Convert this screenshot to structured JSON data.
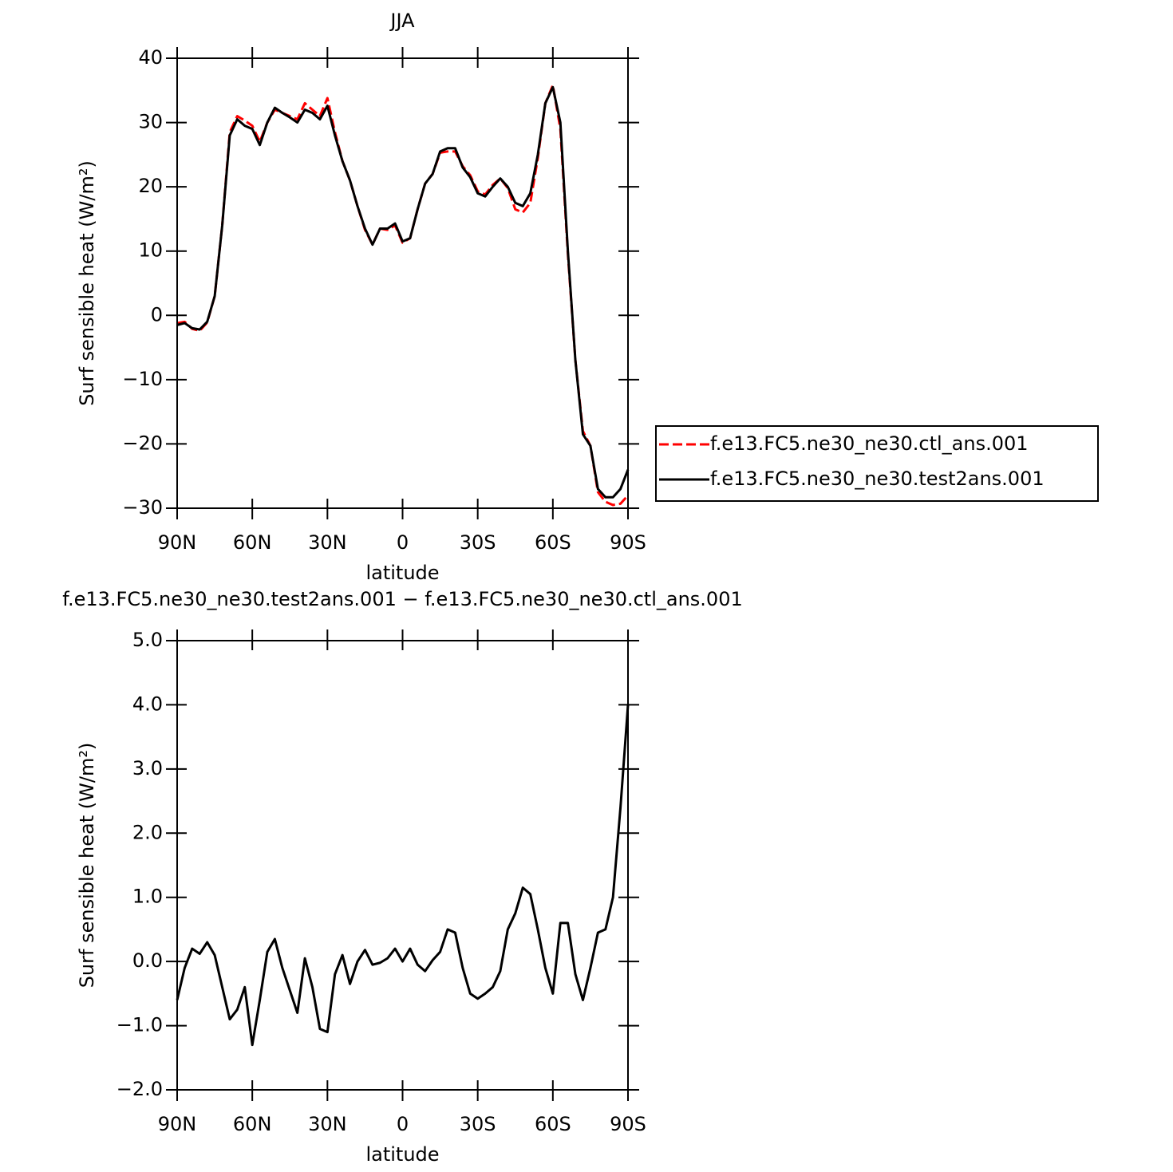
{
  "chart_data": [
    {
      "type": "line",
      "title": "JJA",
      "x_label": "latitude",
      "y_label": "Surf sensible heat (W/m²)",
      "x": [
        90,
        87,
        84,
        81,
        78,
        75,
        72,
        69,
        66,
        63,
        60,
        57,
        54,
        51,
        48,
        45,
        42,
        39,
        36,
        33,
        30,
        27,
        24,
        21,
        18,
        15,
        12,
        9,
        6,
        3,
        0,
        -3,
        -6,
        -9,
        -12,
        -15,
        -18,
        -21,
        -24,
        -27,
        -30,
        -33,
        -36,
        -39,
        -42,
        -45,
        -48,
        -51,
        -54,
        -57,
        -60,
        -63,
        -66,
        -69,
        -72,
        -75,
        -78,
        -81,
        -84,
        -87,
        -90
      ],
      "series": [
        {
          "name": "f.e13.FC5.ne30_ne30.ctl_ans.001",
          "color": "#ff0000",
          "style": "dashed",
          "values": [
            -1.2,
            -1.0,
            -2.1,
            -2.4,
            -1.1,
            3,
            14,
            28.5,
            31,
            30.3,
            29.5,
            27,
            30,
            32,
            31.5,
            31,
            30.5,
            33,
            32,
            31,
            33.8,
            28.5,
            24,
            21,
            17,
            13.3,
            11,
            13.5,
            13.3,
            14,
            11.3,
            12,
            16.5,
            20.5,
            22,
            25.3,
            25.5,
            25.5,
            23.2,
            21.8,
            19.3,
            18.8,
            20.3,
            21.3,
            19.8,
            16.5,
            16,
            17.5,
            24.5,
            33,
            35.8,
            29,
            9.5,
            -7,
            -18,
            -20.3,
            -27.5,
            -29,
            -29.5,
            -29.3,
            -28
          ]
        },
        {
          "name": "f.e13.FC5.ne30_ne30.test2ans.001",
          "color": "#000000",
          "style": "solid",
          "values": [
            -1.5,
            -1.2,
            -2.0,
            -2.2,
            -1.0,
            3,
            14,
            28,
            30.5,
            29.5,
            29,
            26.5,
            30,
            32.3,
            31.5,
            30.8,
            30,
            32,
            31.5,
            30.5,
            32.6,
            28,
            24,
            21,
            17,
            13.5,
            11,
            13.5,
            13.5,
            14.3,
            11.5,
            12,
            16.5,
            20.5,
            22,
            25.5,
            26,
            26,
            23,
            21.5,
            19,
            18.5,
            20,
            21.3,
            20,
            17.5,
            17,
            19,
            25,
            33,
            35.5,
            30,
            10,
            -7,
            -18.5,
            -20.3,
            -27,
            -28.3,
            -28.3,
            -27,
            -24
          ]
        }
      ],
      "xlim": [
        90,
        -90
      ],
      "xticks": [
        {
          "value": 90,
          "label": "90N"
        },
        {
          "value": 60,
          "label": "60N"
        },
        {
          "value": 30,
          "label": "30N"
        },
        0,
        {
          "value": -30,
          "label": "30S"
        },
        {
          "value": -60,
          "label": "60S"
        },
        {
          "value": -90,
          "label": "90S"
        }
      ],
      "ylim": [
        -30,
        40
      ],
      "yticks": [
        {
          "value": -30,
          "label": "−30"
        },
        {
          "value": -20,
          "label": "−20"
        },
        {
          "value": -10,
          "label": "−10"
        },
        0,
        10,
        20,
        30,
        40
      ],
      "legend": "right"
    },
    {
      "type": "line",
      "title": "f.e13.FC5.ne30_ne30.test2ans.001 − f.e13.FC5.ne30_ne30.ctl_ans.001",
      "x_label": "latitude",
      "y_label": "Surf sensible heat (W/m²)",
      "x": [
        90,
        87,
        84,
        81,
        78,
        75,
        72,
        69,
        66,
        63,
        60,
        57,
        54,
        51,
        48,
        45,
        42,
        39,
        36,
        33,
        30,
        27,
        24,
        21,
        18,
        15,
        12,
        9,
        6,
        3,
        0,
        -3,
        -6,
        -9,
        -12,
        -15,
        -18,
        -21,
        -24,
        -27,
        -30,
        -33,
        -36,
        -39,
        -42,
        -45,
        -48,
        -51,
        -54,
        -57,
        -60,
        -63,
        -66,
        -69,
        -72,
        -75,
        -78,
        -81,
        -84,
        -87,
        -90
      ],
      "series": [
        {
          "color": "#000000",
          "style": "solid",
          "values": [
            -0.6,
            -0.1,
            0.2,
            0.12,
            0.3,
            0.1,
            -0.4,
            -0.9,
            -0.75,
            -0.4,
            -1.3,
            -0.6,
            0.15,
            0.35,
            -0.1,
            -0.45,
            -0.8,
            0.05,
            -0.4,
            -1.05,
            -1.1,
            -0.2,
            0.1,
            -0.35,
            0,
            0.18,
            -0.05,
            -0.02,
            0.05,
            0.2,
            0,
            0.2,
            -0.05,
            -0.15,
            0.02,
            0.15,
            0.5,
            0.45,
            -0.1,
            -0.5,
            -0.58,
            -0.5,
            -0.4,
            -0.15,
            0.5,
            0.75,
            1.15,
            1.05,
            0.5,
            -0.1,
            -0.5,
            0.6,
            0.6,
            -0.2,
            -0.6,
            -0.1,
            0.45,
            0.5,
            1.0,
            2.4,
            4.0
          ]
        }
      ],
      "xlim": [
        90,
        -90
      ],
      "xticks": [
        {
          "value": 90,
          "label": "90N"
        },
        {
          "value": 60,
          "label": "60N"
        },
        {
          "value": 30,
          "label": "30N"
        },
        0,
        {
          "value": -30,
          "label": "30S"
        },
        {
          "value": -60,
          "label": "60S"
        },
        {
          "value": -90,
          "label": "90S"
        }
      ],
      "ylim": [
        -2,
        5
      ],
      "yticks": [
        {
          "value": -2,
          "label": "−2.0"
        },
        {
          "value": -1,
          "label": "−1.0"
        },
        {
          "value": 0,
          "label": "0.0"
        },
        {
          "value": 1,
          "label": "1.0"
        },
        {
          "value": 2,
          "label": "2.0"
        },
        {
          "value": 3,
          "label": "3.0"
        },
        {
          "value": 4,
          "label": "4.0"
        },
        {
          "value": 5,
          "label": "5.0"
        }
      ]
    }
  ]
}
